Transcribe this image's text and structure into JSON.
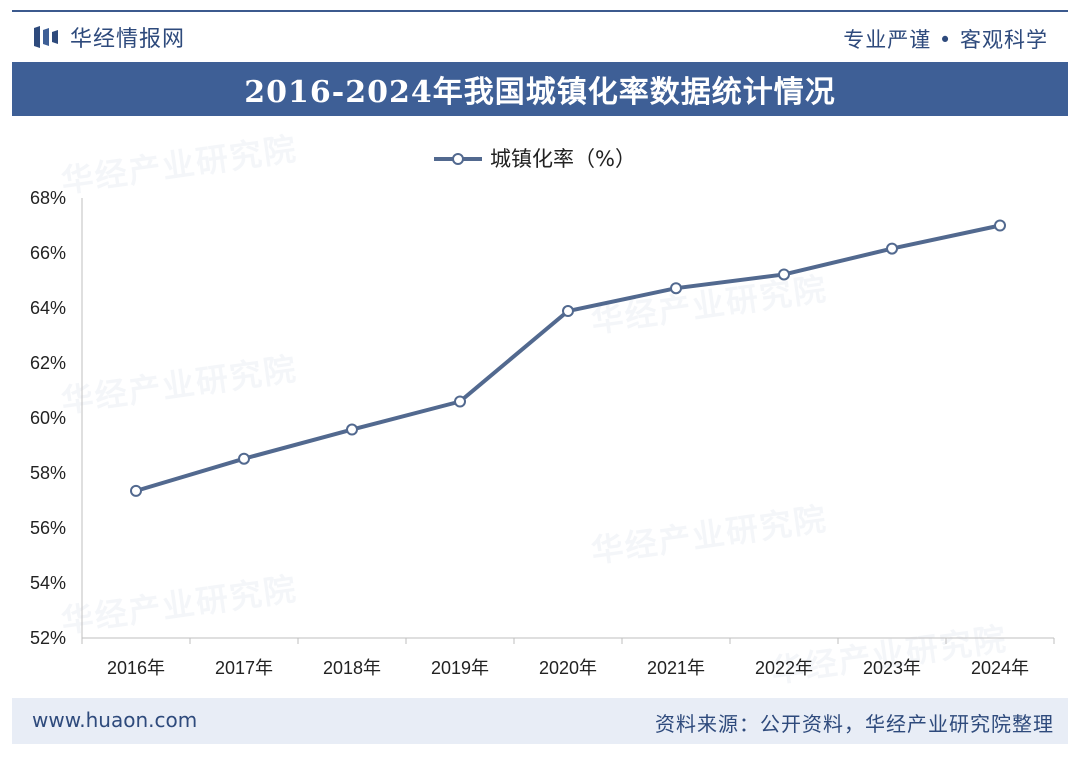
{
  "header": {
    "brand": "华经情报网",
    "slogan": "专业严谨 • 客观科学"
  },
  "title": "2016-2024年我国城镇化率数据统计情况",
  "footer": {
    "url": "www.huaon.com",
    "source": "资料来源：公开资料，华经产业研究院整理"
  },
  "watermark": {
    "text": "华经产业研究院",
    "url_text": "www.huaon.com"
  },
  "colors": {
    "brand": "#2e4a7c",
    "title_bar": "#3e5f96",
    "line": "#52698f",
    "footer_bg": "#e8edf6"
  },
  "chart_data": {
    "type": "line",
    "title": "2016-2024年我国城镇化率数据统计情况",
    "categories": [
      "2016年",
      "2017年",
      "2018年",
      "2019年",
      "2020年",
      "2021年",
      "2022年",
      "2023年",
      "2024年"
    ],
    "series": [
      {
        "name": "城镇化率（%）",
        "values": [
          57.35,
          58.52,
          59.58,
          60.6,
          63.89,
          64.72,
          65.22,
          66.16,
          67.0
        ]
      }
    ],
    "ylim": [
      52,
      68
    ],
    "y_ticks": [
      "52%",
      "54%",
      "56%",
      "58%",
      "60%",
      "62%",
      "64%",
      "66%",
      "68%"
    ],
    "grid": false,
    "legend_position": "top-center",
    "xlabel": "",
    "ylabel": ""
  }
}
